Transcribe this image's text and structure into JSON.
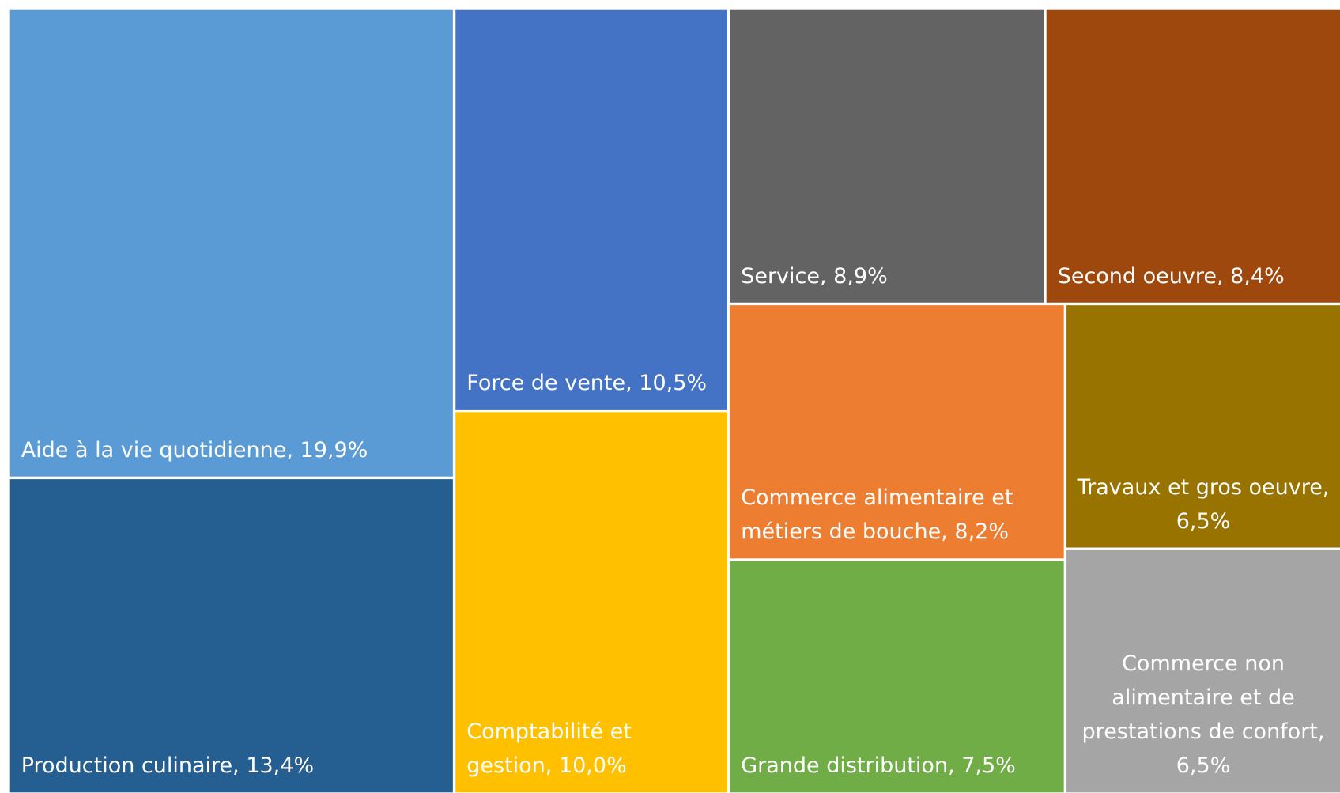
{
  "chart_data": {
    "type": "treemap",
    "labels": [
      "Aide à la vie quotidienne, 19,9%",
      "Production culinaire, 13,4%",
      "Force de vente, 10,5%",
      "Comptabilité et gestion, 10,0%",
      "Service, 8,9%",
      "Second oeuvre, 8,4%",
      "Commerce alimentaire et métiers de bouche, 8,2%",
      "Grande distribution, 7,5%",
      "Travaux et gros oeuvre, 6,5%",
      "Commerce non alimentaire et de prestations de confort, 6,5%"
    ],
    "values": [
      19.9,
      13.4,
      10.5,
      10.0,
      8.9,
      8.4,
      8.2,
      7.5,
      6.5,
      6.5
    ],
    "colors": [
      "#5b9bd5",
      "#255e91",
      "#4472c4",
      "#ffc000",
      "#636363",
      "#9e480e",
      "#ed7d31",
      "#70ad47",
      "#997300",
      "#a5a5a5"
    ]
  }
}
